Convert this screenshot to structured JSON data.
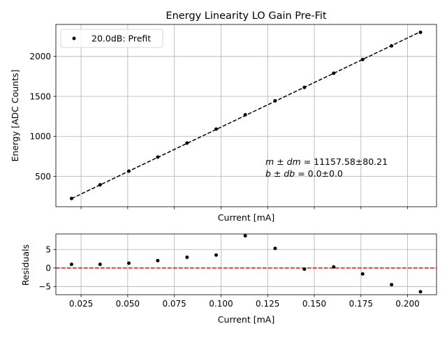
{
  "chart_data": [
    {
      "type": "scatter",
      "title": "Energy Linearity LO Gain Pre-Fit",
      "xlabel": "Current [mA]",
      "ylabel": "Energy [ADC Counts]",
      "xlim": [
        0.0115,
        0.2155
      ],
      "ylim": [
        120,
        2400
      ],
      "xticks": [
        0.025,
        0.05,
        0.075,
        0.1,
        0.125,
        0.15,
        0.175,
        0.2
      ],
      "show_xticklabels": false,
      "yticks": [
        500,
        1000,
        1500,
        2000
      ],
      "ytick_labels": [
        "500",
        "1000",
        "1500",
        "2000"
      ],
      "grid": true,
      "legend": {
        "placement": "upper-left",
        "entries": [
          "20.0dB: Prefit"
        ]
      },
      "series": [
        {
          "name": "20.0dB: Prefit",
          "color": "#000000",
          "marker": "dot",
          "x": [
            0.0199,
            0.0352,
            0.0506,
            0.0661,
            0.0818,
            0.0974,
            0.113,
            0.129,
            0.1447,
            0.1604,
            0.1759,
            0.1914,
            0.2069
          ],
          "y": [
            223,
            394,
            565,
            740,
            916,
            1091,
            1270,
            1445,
            1613,
            1790,
            1961,
            2132,
            2302
          ]
        }
      ],
      "fit_line": {
        "style": "dashed",
        "color": "#000000",
        "x": [
          0.0199,
          0.2069
        ],
        "y": [
          222,
          2308
        ]
      },
      "annotation": [
        "$m \\pm dm$ = 11157.58±80.21",
        "$b \\pm db$ = 0.0±0.0"
      ],
      "annotation_display": {
        "line1": {
          "lhs": "m ± dm",
          "rhs": " = 11157.58±80.21"
        },
        "line2": {
          "lhs": "b ± db",
          "rhs": " = 0.0±0.0"
        }
      }
    },
    {
      "type": "scatter",
      "title": "",
      "xlabel": "Current [mA]",
      "ylabel": "Residuals",
      "xlim": [
        0.0115,
        0.2155
      ],
      "ylim": [
        -7.2,
        9.2
      ],
      "xticks": [
        0.025,
        0.05,
        0.075,
        0.1,
        0.125,
        0.15,
        0.175,
        0.2
      ],
      "xtick_labels": [
        "0.025",
        "0.050",
        "0.075",
        "0.100",
        "0.125",
        "0.150",
        "0.175",
        "0.200"
      ],
      "yticks": [
        -5,
        0,
        5
      ],
      "ytick_labels": [
        "−5",
        "0",
        "5"
      ],
      "grid": true,
      "series": [
        {
          "color": "#000000",
          "marker": "dot",
          "x": [
            0.0199,
            0.0352,
            0.0506,
            0.0661,
            0.0818,
            0.0974,
            0.113,
            0.129,
            0.1447,
            0.1604,
            0.1759,
            0.1914,
            0.2069
          ],
          "y": [
            1.0,
            1.0,
            1.3,
            2.0,
            2.9,
            3.5,
            8.7,
            5.3,
            -0.3,
            0.3,
            -1.6,
            -4.5,
            -6.4
          ]
        }
      ],
      "zero_line": {
        "style": "dashed",
        "color": "#ff0000",
        "y": 0
      }
    }
  ]
}
